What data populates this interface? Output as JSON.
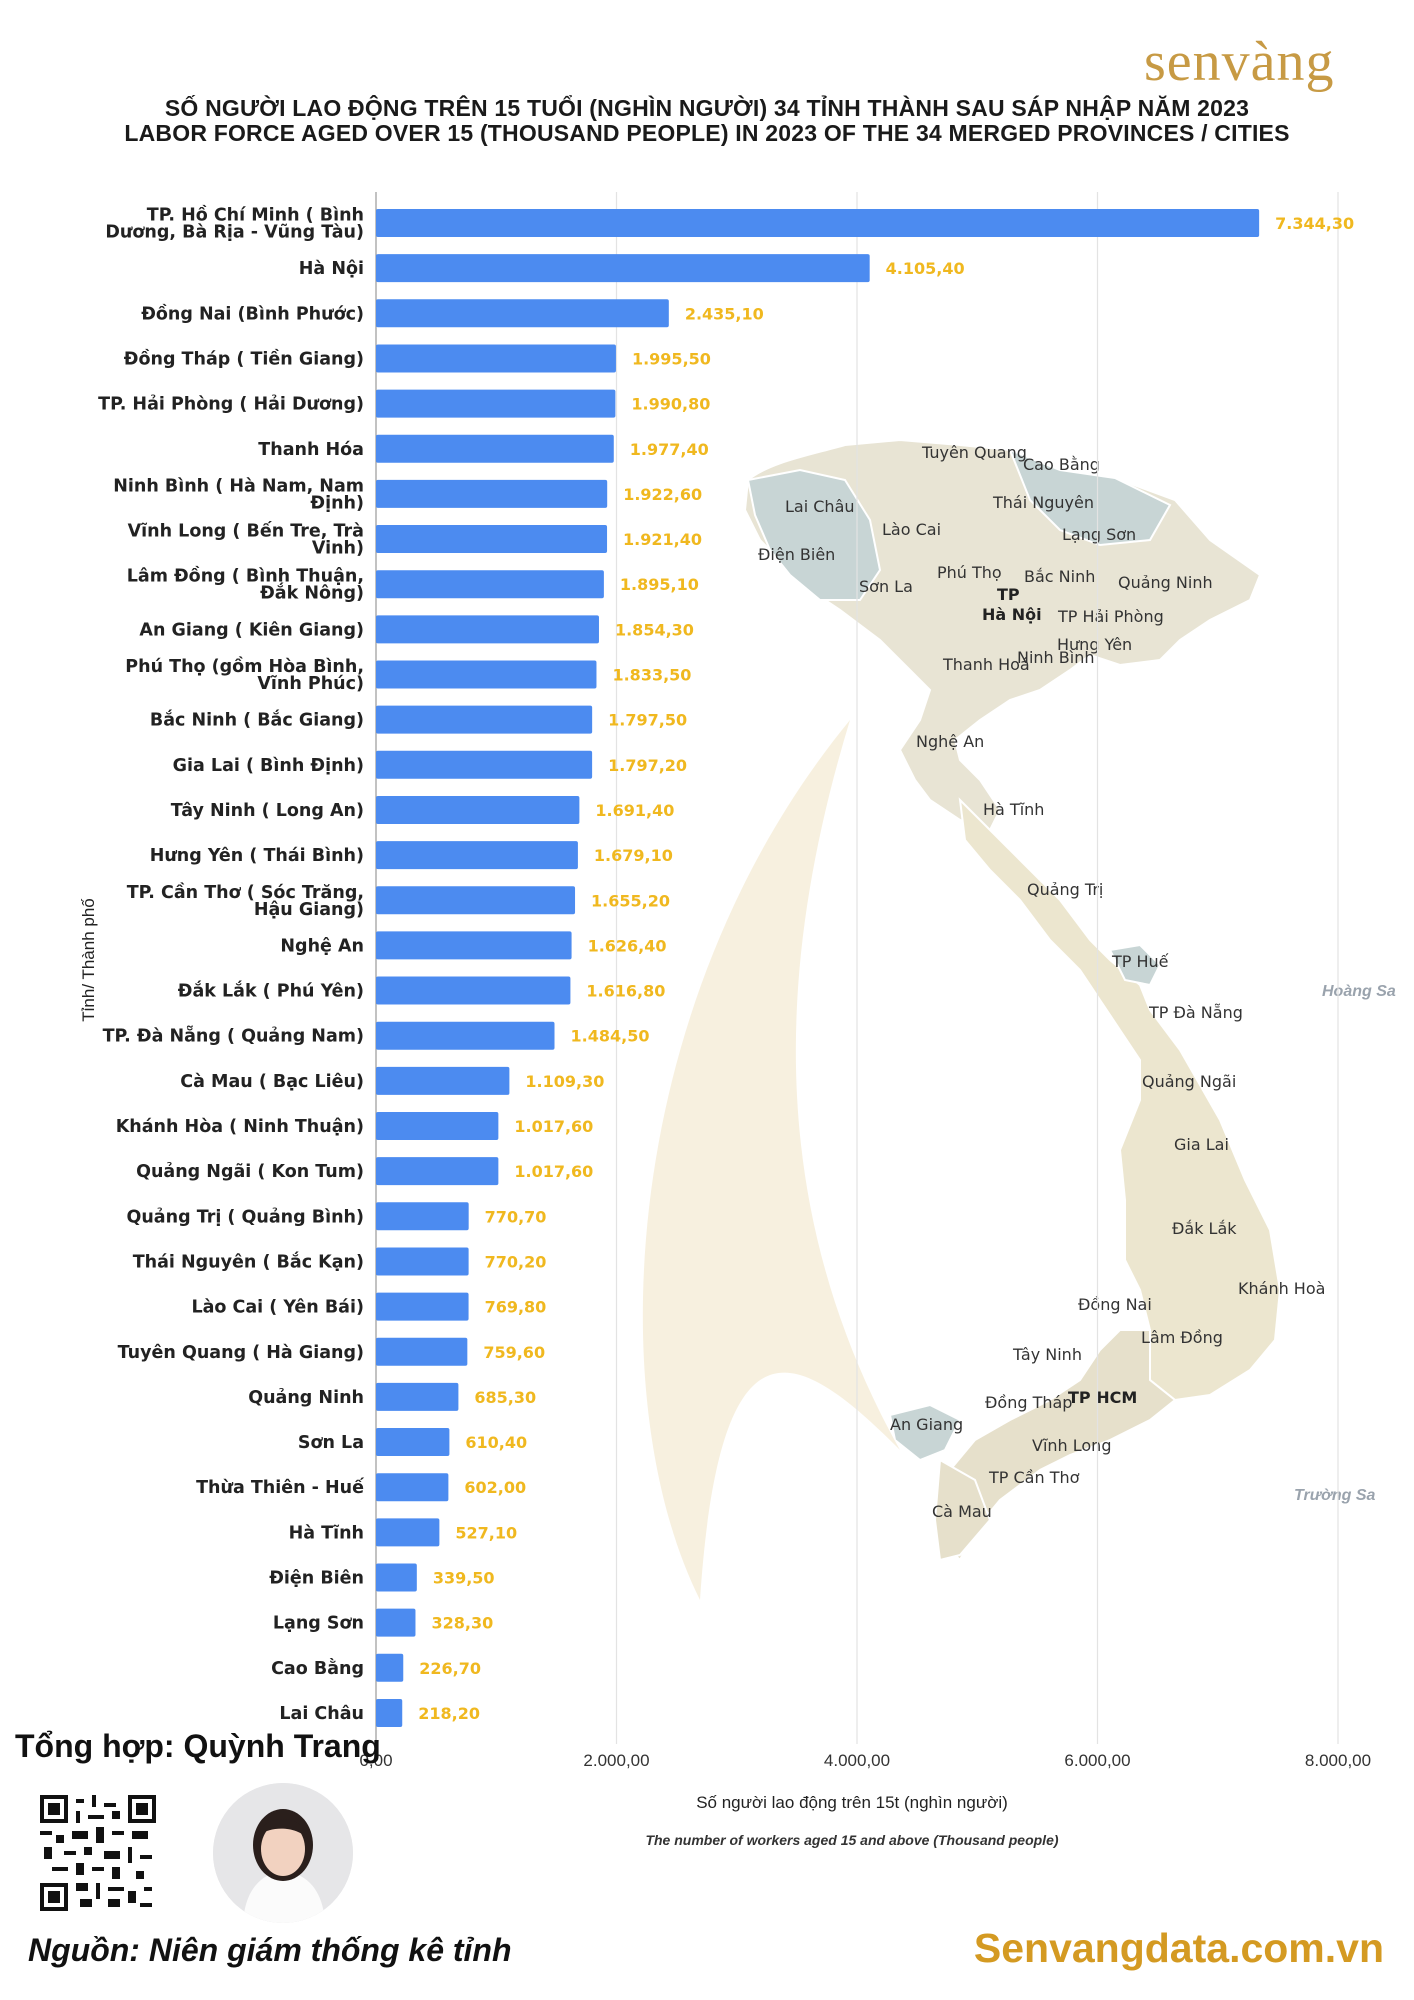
{
  "brand": {
    "logo_text": "senvàng",
    "website": "Senvangdata.com.vn"
  },
  "title_vi": "SỐ NGƯỜI LAO ĐỘNG TRÊN 15 TUỔI (NGHÌN NGƯỜI) 34 TỈNH THÀNH SAU SÁP NHẬP NĂM 2023",
  "title_en": "LABOR FORCE AGED OVER 15 (THOUSAND PEOPLE) IN 2023 OF THE 34 MERGED PROVINCES / CITIES",
  "footer": {
    "compiled_by": "Tổng hợp: Quỳnh Trang",
    "source": "Nguồn: Niên giám thống kê tỉnh"
  },
  "colors": {
    "bar": "#4c8bf0",
    "value_label": "#f0b81f",
    "brand_gold": "#c79a44",
    "website": "#d49a22"
  },
  "chart_data": {
    "type": "bar",
    "orientation": "horizontal",
    "xlabel": "Số người lao động trên 15t (nghìn người)",
    "xlabel_en": "The number of workers aged 15 and above (Thousand people)",
    "ylabel": "Tỉnh/ Thành phố",
    "xlim": [
      0,
      8000
    ],
    "grid": true,
    "ticks": [
      {
        "value": 0,
        "label": "0,00"
      },
      {
        "value": 2000,
        "label": "2.000,00"
      },
      {
        "value": 4000,
        "label": "4.000,00"
      },
      {
        "value": 6000,
        "label": "6.000,00"
      },
      {
        "value": 8000,
        "label": "8.000,00"
      }
    ],
    "categories": [
      [
        "TP. Hồ Chí Minh ( Bình",
        "Dương, Bà Rịa - Vũng Tàu)"
      ],
      [
        "Hà Nội"
      ],
      [
        "Đồng Nai (Bình Phước)"
      ],
      [
        "Đồng Tháp ( Tiền Giang)"
      ],
      [
        "TP. Hải Phòng ( Hải Dương)"
      ],
      [
        "Thanh Hóa"
      ],
      [
        "Ninh Bình ( Hà Nam, Nam",
        "Định)"
      ],
      [
        "Vĩnh Long ( Bến Tre, Trà",
        "Vinh)"
      ],
      [
        "Lâm Đồng ( Bình Thuận,",
        "Đắk Nông)"
      ],
      [
        "An Giang ( Kiên Giang)"
      ],
      [
        "Phú Thọ (gồm Hòa Bình,",
        "Vĩnh Phúc)"
      ],
      [
        "Bắc Ninh ( Bắc Giang)"
      ],
      [
        "Gia Lai ( Bình Định)"
      ],
      [
        "Tây Ninh ( Long An)"
      ],
      [
        "Hưng Yên ( Thái Bình)"
      ],
      [
        "TP. Cần Thơ ( Sóc Trăng,",
        "Hậu Giang)"
      ],
      [
        "Nghệ An"
      ],
      [
        "Đắk Lắk ( Phú Yên)"
      ],
      [
        "TP. Đà Nẵng ( Quảng Nam)"
      ],
      [
        "Cà Mau ( Bạc Liêu)"
      ],
      [
        "Khánh Hòa ( Ninh Thuận)"
      ],
      [
        "Quảng Ngãi ( Kon Tum)"
      ],
      [
        "Quảng Trị ( Quảng Bình)"
      ],
      [
        "Thái Nguyên ( Bắc Kạn)"
      ],
      [
        "Lào Cai ( Yên Bái)"
      ],
      [
        "Tuyên Quang ( Hà Giang)"
      ],
      [
        "Quảng Ninh"
      ],
      [
        "Sơn La"
      ],
      [
        "Thừa Thiên - Huế"
      ],
      [
        "Hà Tĩnh"
      ],
      [
        "Điện Biên"
      ],
      [
        "Lạng Sơn"
      ],
      [
        "Cao Bằng"
      ],
      [
        "Lai Châu"
      ]
    ],
    "values": [
      7344.3,
      4105.4,
      2435.1,
      1995.5,
      1990.8,
      1977.4,
      1922.6,
      1921.4,
      1895.1,
      1854.3,
      1833.5,
      1797.5,
      1797.2,
      1691.4,
      1679.1,
      1655.2,
      1626.4,
      1616.8,
      1484.5,
      1109.3,
      1017.6,
      1017.6,
      770.7,
      770.2,
      769.8,
      759.6,
      685.3,
      610.4,
      602.0,
      527.1,
      339.5,
      328.3,
      226.7,
      218.2
    ],
    "value_labels": [
      "7.344,30",
      "4.105,40",
      "2.435,10",
      "1.995,50",
      "1.990,80",
      "1.977,40",
      "1.922,60",
      "1.921,40",
      "1.895,10",
      "1.854,30",
      "1.833,50",
      "1.797,50",
      "1.797,20",
      "1.691,40",
      "1.679,10",
      "1.655,20",
      "1.626,40",
      "1.616,80",
      "1.484,50",
      "1.109,30",
      "1.017,60",
      "1.017,60",
      "770,70",
      "770,20",
      "769,80",
      "759,60",
      "685,30",
      "610,40",
      "602,00",
      "527,10",
      "339,50",
      "328,30",
      "226,70",
      "218,20"
    ]
  },
  "map": {
    "regions": [
      "Tuyên Quang",
      "Cao Bằng",
      "Lai Châu",
      "Thái Nguyên",
      "Lào Cai",
      "Lạng Sơn",
      "Điện Biên",
      "Phú Thọ",
      "Bắc Ninh",
      "Quảng Ninh",
      "Sơn La",
      "TP",
      "Hà Nội",
      "TP Hải Phòng",
      "Hưng Yên",
      "Thanh Hoá",
      "Ninh Bình",
      "Nghệ An",
      "Hà Tĩnh",
      "Quảng Trị",
      "TP Huế",
      "TP Đà Nẵng",
      "Quảng Ngãi",
      "Gia Lai",
      "Đắk Lắk",
      "Khánh Hoà",
      "Đồng Nai",
      "Lâm Đồng",
      "Tây Ninh",
      "TP HCM",
      "Đồng Tháp",
      "An Giang",
      "Vĩnh Long",
      "TP Cần Thơ",
      "Cà Mau"
    ],
    "islands": [
      "Hoàng Sa",
      "Trường Sa"
    ]
  }
}
